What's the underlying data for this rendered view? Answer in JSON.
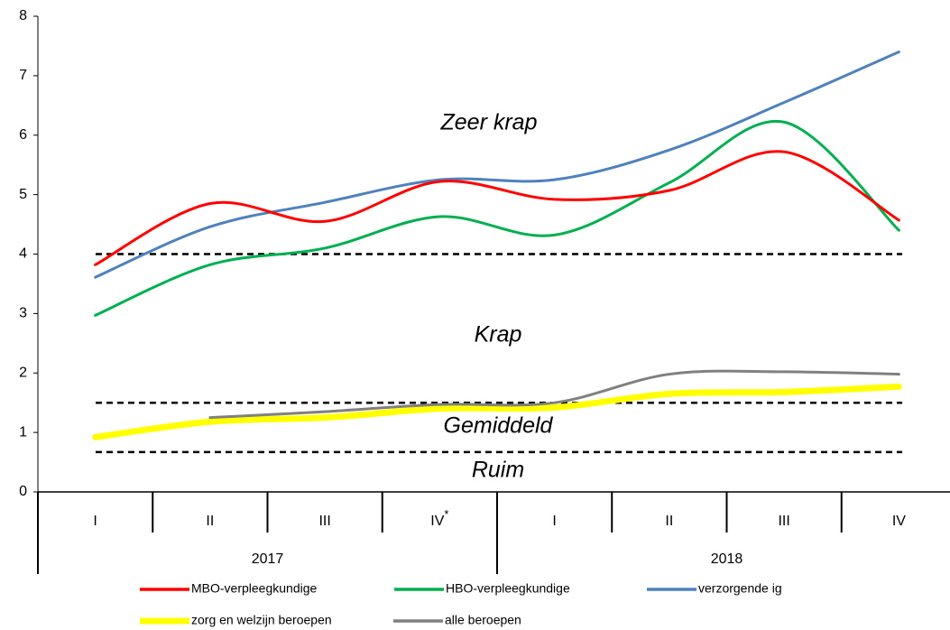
{
  "chart_data": {
    "type": "line",
    "categories": [
      "I",
      "II",
      "III",
      "IV*",
      "I",
      "II",
      "III",
      "IV"
    ],
    "groups": [
      {
        "label": "2017",
        "span": 4
      },
      {
        "label": "2018",
        "span": 4
      }
    ],
    "series": [
      {
        "name": "MBO-verpleegkundige",
        "color": "#ff0000",
        "values": [
          3.82,
          4.85,
          4.55,
          5.22,
          4.92,
          5.07,
          5.72,
          4.57
        ]
      },
      {
        "name": "HBO-verpleegkundige",
        "color": "#00b050",
        "values": [
          2.97,
          3.82,
          4.1,
          4.63,
          4.32,
          5.2,
          6.22,
          4.4
        ]
      },
      {
        "name": "verzorgende ig",
        "color": "#4f81bd",
        "values": [
          3.61,
          4.46,
          4.87,
          5.25,
          5.25,
          5.75,
          6.55,
          7.4
        ]
      },
      {
        "name": "zorg en welzijn beroepen",
        "color": "#ffff00",
        "values": [
          0.92,
          1.18,
          1.25,
          1.4,
          1.42,
          1.65,
          1.68,
          1.77
        ]
      },
      {
        "name": "alle beroepen",
        "color": "#808080",
        "values": [
          null,
          1.25,
          1.35,
          1.47,
          1.5,
          1.98,
          2.02,
          1.98
        ]
      }
    ],
    "thresholds": [
      4,
      1.5,
      0.67
    ],
    "zones": [
      "Zeer krap",
      "Krap",
      "Gemiddeld",
      "Ruim"
    ],
    "ylim": [
      0,
      8
    ],
    "yticks": [
      0,
      1,
      2,
      3,
      4,
      5,
      6,
      7,
      8
    ]
  }
}
